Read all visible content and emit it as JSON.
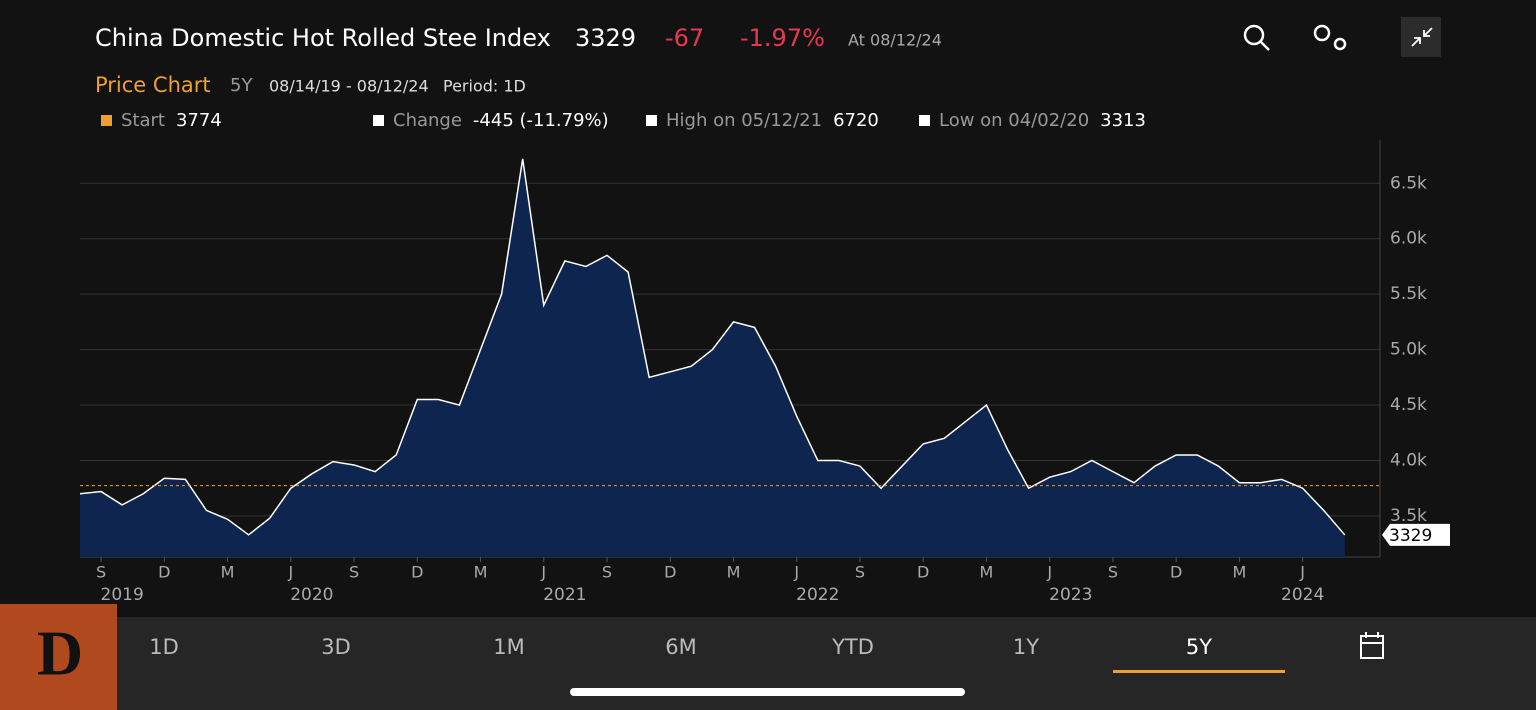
{
  "header": {
    "title": "China Domestic Hot Rolled Stee Index",
    "price": "3329",
    "change": "-67",
    "change_pct": "-1.97%",
    "as_of": "At 08/12/24",
    "section": "Price Chart",
    "range": "5Y",
    "dates": "08/14/19 - 08/12/24",
    "period": "Period: 1D"
  },
  "stats": [
    {
      "label": "Start",
      "value": 3774,
      "color": "#f0a030"
    },
    {
      "label": "Change",
      "value": "-445 (-11.79%)",
      "color": "#ffffff"
    },
    {
      "label": "High on 05/12/21",
      "value": 6720,
      "color": "#ffffff"
    },
    {
      "label": "Low on 04/02/20",
      "value": 3313,
      "color": "#ffffff"
    }
  ],
  "tabs": [
    "1D",
    "3D",
    "1M",
    "6M",
    "YTD",
    "1Y",
    "5Y"
  ],
  "active_tab": "5Y",
  "logo": "D",
  "chart_data": {
    "type": "area",
    "x": [
      "2019-08",
      "2019-09",
      "2019-10",
      "2019-11",
      "2019-12",
      "2020-01",
      "2020-02",
      "2020-03",
      "2020-04",
      "2020-05",
      "2020-06",
      "2020-07",
      "2020-08",
      "2020-09",
      "2020-10",
      "2020-11",
      "2020-12",
      "2021-01",
      "2021-02",
      "2021-03",
      "2021-04",
      "2021-05",
      "2021-06",
      "2021-07",
      "2021-08",
      "2021-09",
      "2021-10",
      "2021-11",
      "2021-12",
      "2022-01",
      "2022-02",
      "2022-03",
      "2022-04",
      "2022-05",
      "2022-06",
      "2022-07",
      "2022-08",
      "2022-09",
      "2022-10",
      "2022-11",
      "2022-12",
      "2023-01",
      "2023-02",
      "2023-03",
      "2023-04",
      "2023-05",
      "2023-06",
      "2023-07",
      "2023-08",
      "2023-09",
      "2023-10",
      "2023-11",
      "2023-12",
      "2024-01",
      "2024-02",
      "2024-03",
      "2024-04",
      "2024-05",
      "2024-06",
      "2024-07",
      "2024-08"
    ],
    "series": [
      {
        "name": "China Domestic Hot Rolled Stee Index",
        "color": "#ffffff",
        "fill": "#0e2550",
        "values": [
          3700,
          3720,
          3600,
          3700,
          3840,
          3830,
          3550,
          3470,
          3330,
          3480,
          3750,
          3880,
          3990,
          3960,
          3900,
          4050,
          4550,
          4550,
          4500,
          5000,
          5500,
          6720,
          5400,
          5800,
          5750,
          5850,
          5700,
          4750,
          4800,
          4850,
          5000,
          5250,
          5200,
          4850,
          4400,
          4000,
          4000,
          3950,
          3750,
          3950,
          4150,
          4200,
          4350,
          4500,
          4100,
          3750,
          3850,
          3900,
          4000,
          3900,
          3800,
          3950,
          4050,
          4050,
          3950,
          3800,
          3800,
          3830,
          3750,
          3550,
          3329
        ]
      }
    ],
    "xticks": [
      {
        "value": "2019-09",
        "label": "S"
      },
      {
        "value": "2019-12",
        "label": "D"
      },
      {
        "value": "2020-03",
        "label": "M"
      },
      {
        "value": "2020-06",
        "label": "J"
      },
      {
        "value": "2020-09",
        "label": "S"
      },
      {
        "value": "2020-12",
        "label": "D"
      },
      {
        "value": "2021-03",
        "label": "M"
      },
      {
        "value": "2021-06",
        "label": "J"
      },
      {
        "value": "2021-09",
        "label": "S"
      },
      {
        "value": "2021-12",
        "label": "D"
      },
      {
        "value": "2022-03",
        "label": "M"
      },
      {
        "value": "2022-06",
        "label": "J"
      },
      {
        "value": "2022-09",
        "label": "S"
      },
      {
        "value": "2022-12",
        "label": "D"
      },
      {
        "value": "2023-03",
        "label": "M"
      },
      {
        "value": "2023-06",
        "label": "J"
      },
      {
        "value": "2023-09",
        "label": "S"
      },
      {
        "value": "2023-12",
        "label": "D"
      },
      {
        "value": "2024-03",
        "label": "M"
      },
      {
        "value": "2024-06",
        "label": "J"
      }
    ],
    "year_labels": [
      {
        "value": "2019-10",
        "label": "2019"
      },
      {
        "value": "2020-07",
        "label": "2020"
      },
      {
        "value": "2021-07",
        "label": "2021"
      },
      {
        "value": "2022-07",
        "label": "2022"
      },
      {
        "value": "2023-07",
        "label": "2023"
      },
      {
        "value": "2024-06",
        "label": "2024"
      }
    ],
    "ylim": [
      3130,
      6890
    ],
    "yticks": [
      {
        "value": 3500,
        "label": "3.5k"
      },
      {
        "value": 4000,
        "label": "4.0k"
      },
      {
        "value": 4500,
        "label": "4.5k"
      },
      {
        "value": 5000,
        "label": "5.0k"
      },
      {
        "value": 5500,
        "label": "5.5k"
      },
      {
        "value": 6000,
        "label": "6.0k"
      },
      {
        "value": 6500,
        "label": "6.5k"
      }
    ],
    "grid": true
  }
}
